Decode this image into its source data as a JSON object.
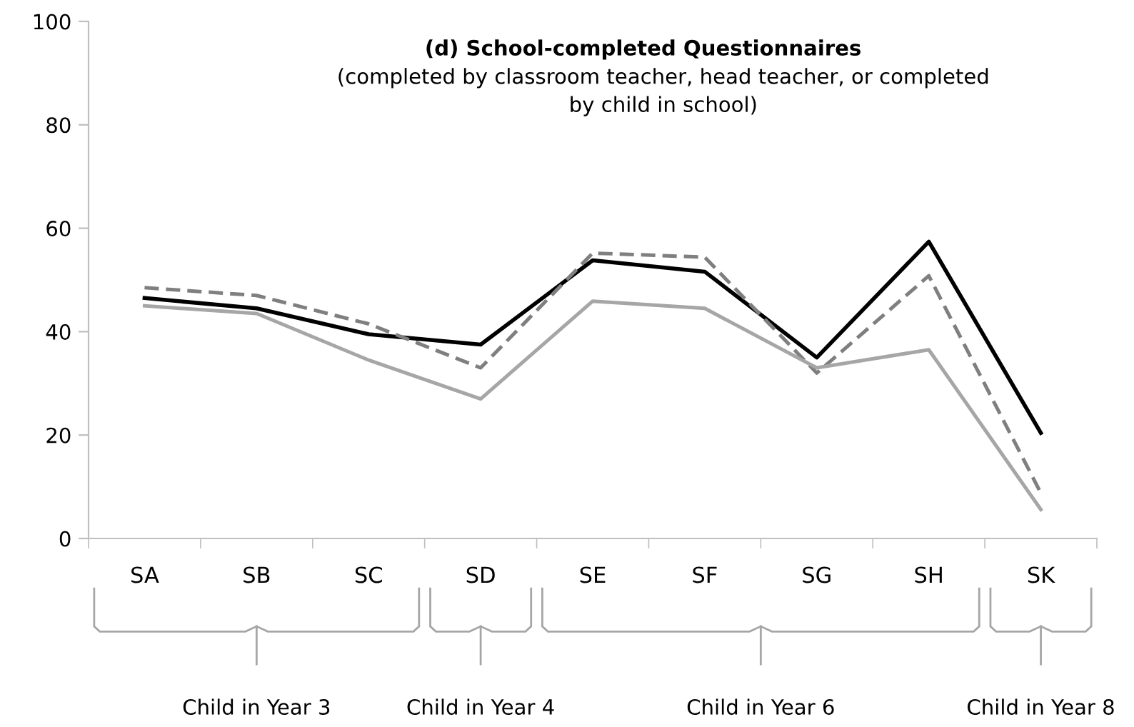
{
  "chart_data": {
    "type": "line",
    "title": "(d) School-completed Questionnaires",
    "subtitle": "(completed by classroom teacher, head teacher, or completed\nby child in school)",
    "categories": [
      "SA",
      "SB",
      "SC",
      "SD",
      "SE",
      "SF",
      "SG",
      "SH",
      "SK"
    ],
    "series": [
      {
        "color": "#000000",
        "line_style": "solid",
        "values": [
          46.5,
          44.5,
          39.5,
          37.5,
          53.8,
          51.6,
          35,
          57.4,
          20.4
        ]
      },
      {
        "color": "#7f7f7f",
        "line_style": "dashed",
        "values": [
          48.5,
          47,
          41.5,
          33,
          55.2,
          54.4,
          32,
          50.8,
          8.8
        ]
      },
      {
        "color": "#a6a6a6",
        "line_style": "solid",
        "values": [
          45,
          43.5,
          34.5,
          27,
          45.9,
          44.5,
          33,
          36.5,
          5.6
        ]
      }
    ],
    "annotations": [
      "Child in Year 3",
      "Child in Year 4",
      "Child in Year 6",
      "Child in Year 8"
    ],
    "ylim": [
      0,
      100
    ],
    "yticks": [
      0,
      20,
      40,
      60,
      80,
      100
    ],
    "grid": false,
    "marker": "none"
  }
}
